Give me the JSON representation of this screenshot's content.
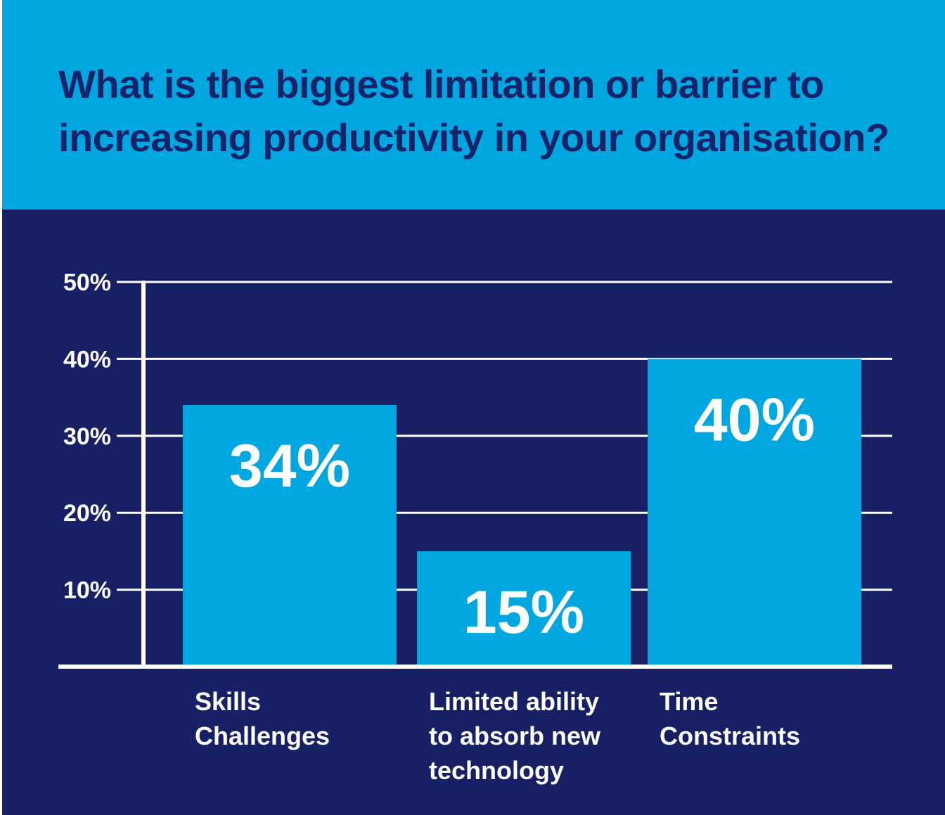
{
  "header": {
    "title": "What is the biggest limitation or barrier to increasing productivity in your organisation?"
  },
  "colors": {
    "header_bg": "#00a6e0",
    "title_text": "#15236a",
    "chart_bg": "#182065",
    "bar": "#00a6e0",
    "gridline": "#ffffff",
    "text": "#ffffff"
  },
  "chart_data": {
    "type": "bar",
    "title": "What is the biggest limitation or barrier to increasing productivity in your organisation?",
    "categories": [
      [
        "Skills",
        "Challenges"
      ],
      [
        "Limited ability",
        "to absorb new",
        "technology"
      ],
      [
        "Time",
        "Constraints"
      ]
    ],
    "values": [
      34,
      15,
      40
    ],
    "value_labels": [
      "34%",
      "15%",
      "40%"
    ],
    "y_ticks": [
      "10%",
      "20%",
      "30%",
      "40%",
      "50%"
    ],
    "y_tick_values": [
      10,
      20,
      30,
      40,
      50
    ],
    "ylim": [
      0,
      50
    ],
    "xlabel": "",
    "ylabel": "",
    "grid": true,
    "legend": "none"
  }
}
